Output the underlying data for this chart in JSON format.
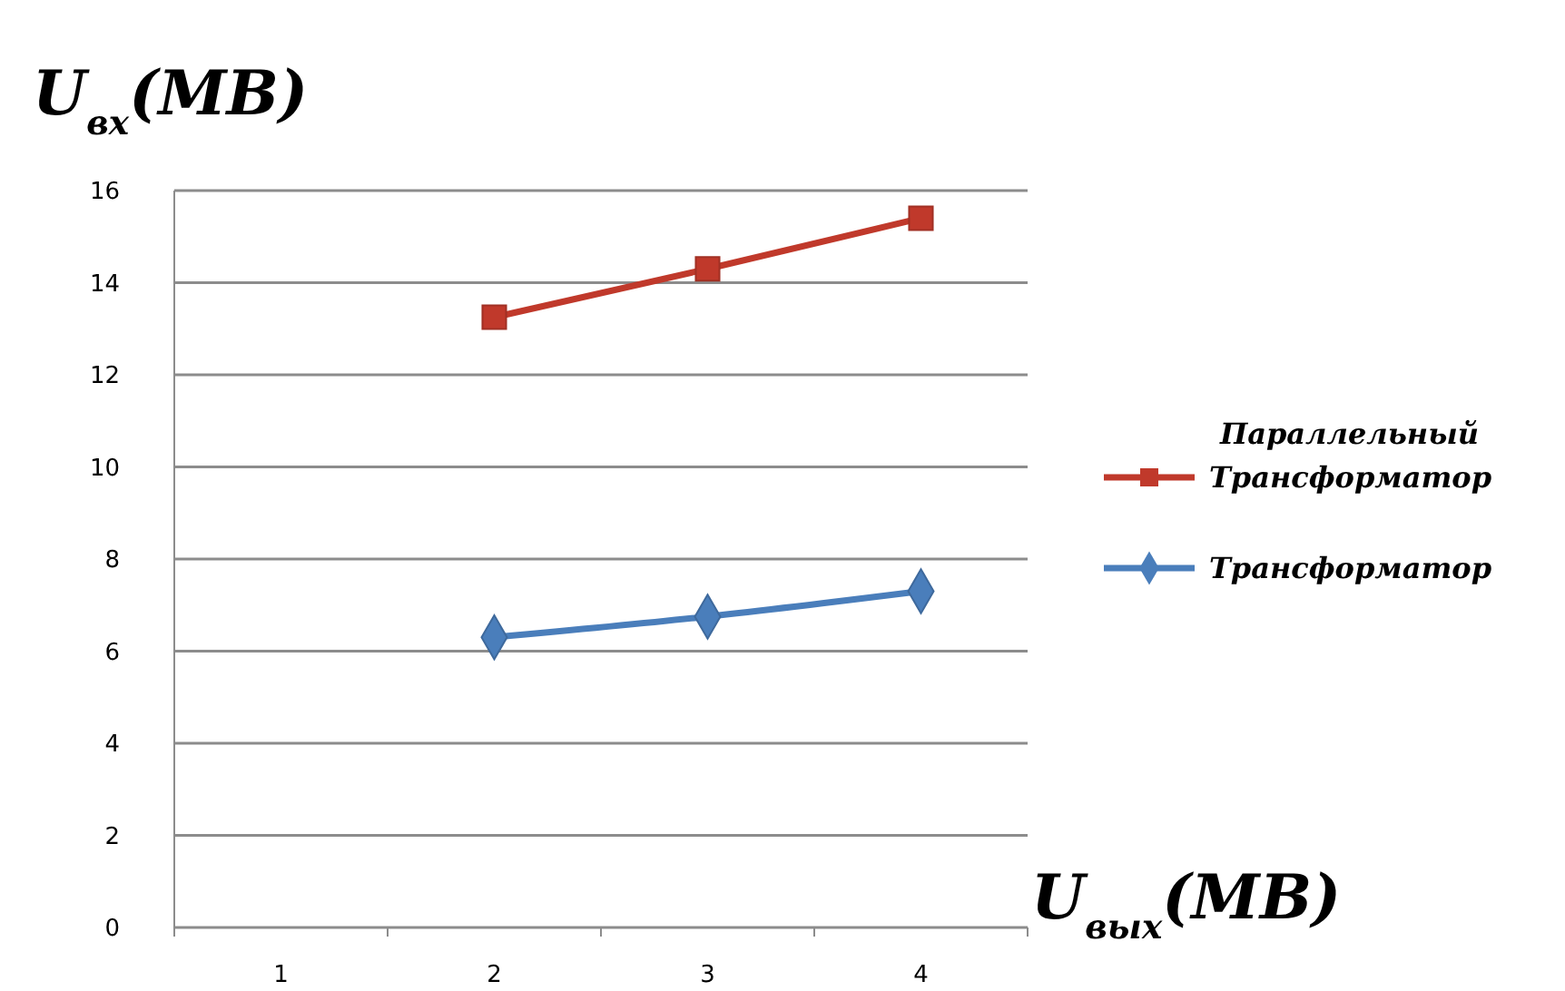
{
  "chart_data": {
    "type": "line",
    "title": "U$_{вх}$(МВ)",
    "xlabel": "U$_{вых}$(МВ)",
    "categories": [
      "1",
      "2",
      "3",
      "4"
    ],
    "series": [
      {
        "name": "Параллельный Трансформатор",
        "color": "#c0392b",
        "marker": "square",
        "values": [
          null,
          13.25,
          14.3,
          15.4
        ]
      },
      {
        "name": "Трансформатор",
        "color": "#4a7ebb",
        "marker": "diamond",
        "values": [
          null,
          6.3,
          6.75,
          7.3
        ]
      }
    ],
    "ylim": [
      0,
      16
    ],
    "yticks": [
      0,
      2,
      4,
      6,
      8,
      10,
      12,
      14,
      16
    ],
    "grid": "y",
    "legend": "right"
  }
}
